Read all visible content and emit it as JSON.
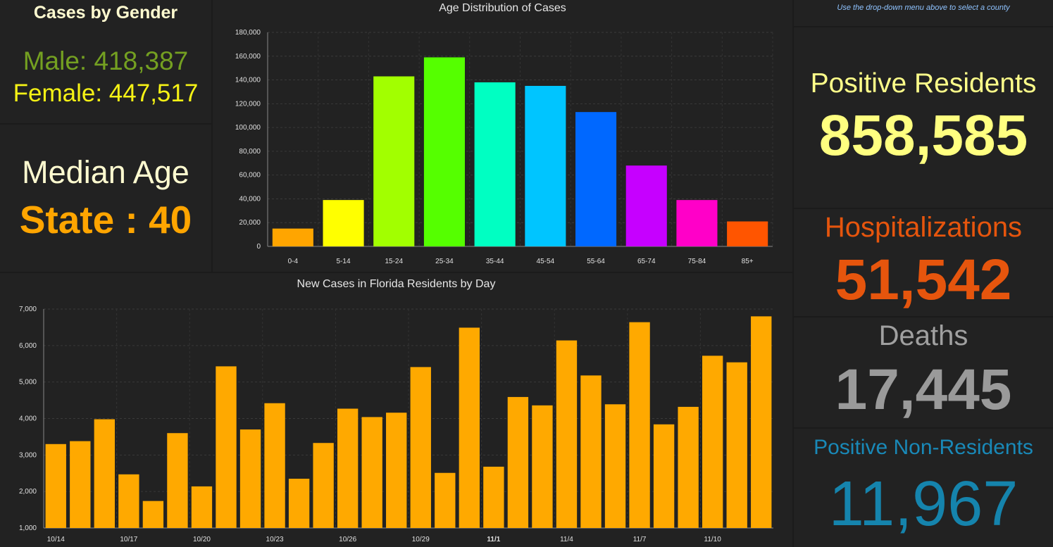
{
  "gender": {
    "title": "Cases by Gender",
    "male": "Male: 418,387",
    "female": "Female: 447,517"
  },
  "median": {
    "title": "Median Age",
    "value": "State : 40"
  },
  "hint": "Use the drop-down menu above to select a county",
  "stats": {
    "positive_label": "Positive Residents",
    "positive_value": "858,585",
    "hosp_label": "Hospitalizations",
    "hosp_value": "51,542",
    "deaths_label": "Deaths",
    "deaths_value": "17,445",
    "nonres_label": "Positive Non-Residents",
    "nonres_value": "11,967"
  },
  "chart_data": [
    {
      "type": "bar",
      "title": "Age Distribution of Cases",
      "categories": [
        "0-4",
        "5-14",
        "15-24",
        "25-34",
        "35-44",
        "45-54",
        "55-64",
        "65-74",
        "75-84",
        "85+"
      ],
      "values": [
        15000,
        39000,
        143000,
        159000,
        138000,
        135000,
        113000,
        68000,
        39000,
        21000
      ],
      "colors": [
        "#ffa500",
        "#ffff00",
        "#a2ff00",
        "#55ff00",
        "#00ffc2",
        "#00c5ff",
        "#0068ff",
        "#c600ff",
        "#ff00c8",
        "#ff5500"
      ],
      "yticks": [
        "0",
        "20,000",
        "40,000",
        "60,000",
        "80,000",
        "100,000",
        "120,000",
        "140,000",
        "160,000",
        "180,000"
      ],
      "ylim": [
        0,
        180000
      ],
      "grid": true
    },
    {
      "type": "bar",
      "title": "New Cases in Florida Residents by Day",
      "x": [
        "10/14",
        "10/15",
        "10/16",
        "10/17",
        "10/18",
        "10/19",
        "10/20",
        "10/21",
        "10/22",
        "10/23",
        "10/24",
        "10/25",
        "10/26",
        "10/27",
        "10/28",
        "10/29",
        "10/30",
        "10/31",
        "11/1",
        "11/2",
        "11/3",
        "11/4",
        "11/5",
        "11/6",
        "11/7",
        "11/8",
        "11/9",
        "11/10",
        "11/11",
        "11/12"
      ],
      "values": [
        3300,
        3380,
        3980,
        2470,
        1740,
        3600,
        2140,
        5430,
        3700,
        4420,
        2350,
        3330,
        4270,
        4040,
        4160,
        5410,
        2510,
        6490,
        2680,
        4590,
        4360,
        6140,
        5180,
        4390,
        6640,
        3840,
        4320,
        5720,
        5540,
        6800
      ],
      "xtick_labels": [
        {
          "i": 0,
          "label": "10/14"
        },
        {
          "i": 3,
          "label": "10/17"
        },
        {
          "i": 6,
          "label": "10/20"
        },
        {
          "i": 9,
          "label": "10/23"
        },
        {
          "i": 12,
          "label": "10/26"
        },
        {
          "i": 15,
          "label": "10/29"
        },
        {
          "i": 18,
          "label": "11/1",
          "bold": true
        },
        {
          "i": 21,
          "label": "11/4"
        },
        {
          "i": 24,
          "label": "11/7"
        },
        {
          "i": 27,
          "label": "11/10"
        }
      ],
      "yticks": [
        "1,000",
        "2,000",
        "3,000",
        "4,000",
        "5,000",
        "6,000",
        "7,000"
      ],
      "ylim": [
        1000,
        7000
      ],
      "color": "#ffa900",
      "grid": true
    }
  ]
}
